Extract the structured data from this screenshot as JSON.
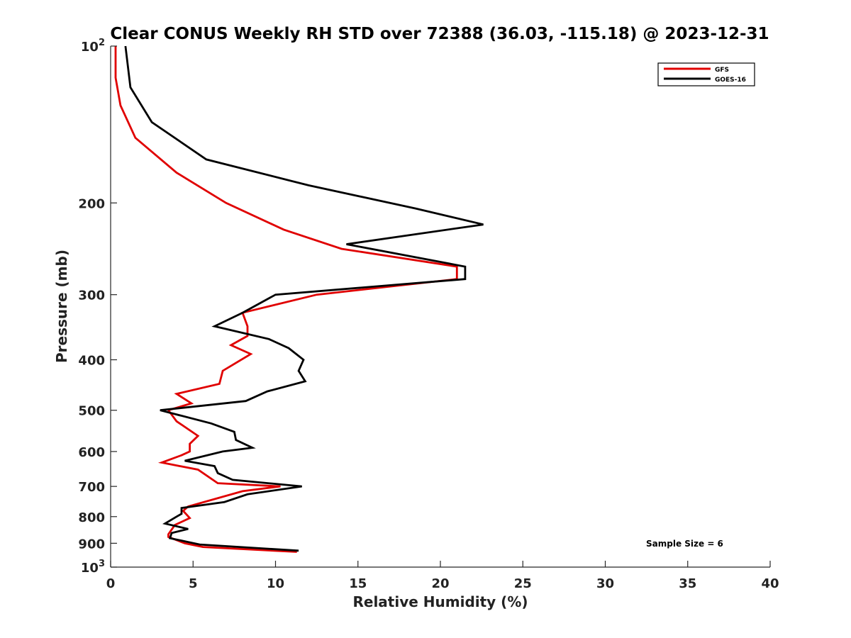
{
  "chart_data": {
    "type": "line",
    "title": "Clear CONUS Weekly RH STD over 72388 (36.03, -115.18) @ 2023-12-31",
    "xlabel": "Relative Humidity (%)",
    "ylabel": "Pressure (mb)",
    "xlim": [
      0,
      40
    ],
    "ylim": [
      100,
      1000
    ],
    "y_scale": "log",
    "y_reversed": true,
    "grid": false,
    "legend_position": "top-right",
    "x_ticks": [
      "0",
      "5",
      "10",
      "15",
      "20",
      "25",
      "30",
      "35",
      "40"
    ],
    "y_ticks": [
      {
        "value": 100,
        "base": "10",
        "exp": "2"
      },
      {
        "value": 200,
        "label": "200"
      },
      {
        "value": 300,
        "label": "300"
      },
      {
        "value": 400,
        "label": "400"
      },
      {
        "value": 500,
        "label": "500"
      },
      {
        "value": 600,
        "label": "600"
      },
      {
        "value": 700,
        "label": "700"
      },
      {
        "value": 800,
        "label": "800"
      },
      {
        "value": 900,
        "label": "900"
      },
      {
        "value": 1000,
        "base": "10",
        "exp": "3"
      }
    ],
    "annotation": "Sample Size = 6",
    "series": [
      {
        "name": "GFS",
        "color": "#e00000",
        "points": [
          [
            0.3,
            100
          ],
          [
            0.3,
            115
          ],
          [
            0.6,
            130
          ],
          [
            1.5,
            150
          ],
          [
            4.0,
            175
          ],
          [
            7.0,
            200
          ],
          [
            10.5,
            225
          ],
          [
            14.0,
            245
          ],
          [
            21.0,
            265
          ],
          [
            21.0,
            280
          ],
          [
            12.5,
            300
          ],
          [
            8.0,
            325
          ],
          [
            8.3,
            345
          ],
          [
            8.3,
            360
          ],
          [
            7.3,
            375
          ],
          [
            8.5,
            390
          ],
          [
            6.8,
            420
          ],
          [
            6.6,
            445
          ],
          [
            4.0,
            465
          ],
          [
            4.9,
            485
          ],
          [
            3.5,
            500
          ],
          [
            4.0,
            525
          ],
          [
            5.3,
            560
          ],
          [
            4.8,
            580
          ],
          [
            4.8,
            600
          ],
          [
            4.3,
            610
          ],
          [
            3.1,
            630
          ],
          [
            5.3,
            650
          ],
          [
            6.5,
            690
          ],
          [
            10.3,
            700
          ],
          [
            8.0,
            715
          ],
          [
            4.7,
            765
          ],
          [
            4.4,
            780
          ],
          [
            4.8,
            805
          ],
          [
            3.9,
            830
          ],
          [
            3.5,
            865
          ],
          [
            3.5,
            875
          ],
          [
            4.5,
            900
          ],
          [
            5.6,
            915
          ],
          [
            11.3,
            935
          ]
        ]
      },
      {
        "name": "GOES-16",
        "color": "#000000",
        "points": [
          [
            0.9,
            100
          ],
          [
            1.2,
            120
          ],
          [
            2.5,
            140
          ],
          [
            5.8,
            165
          ],
          [
            12.0,
            185
          ],
          [
            18.5,
            205
          ],
          [
            22.6,
            220
          ],
          [
            14.3,
            240
          ],
          [
            21.5,
            265
          ],
          [
            21.5,
            280
          ],
          [
            10.0,
            300
          ],
          [
            8.0,
            325
          ],
          [
            6.3,
            345
          ],
          [
            9.6,
            365
          ],
          [
            10.8,
            380
          ],
          [
            11.7,
            400
          ],
          [
            11.4,
            420
          ],
          [
            11.8,
            440
          ],
          [
            9.5,
            460
          ],
          [
            8.2,
            480
          ],
          [
            3.0,
            500
          ],
          [
            6.1,
            530
          ],
          [
            7.5,
            550
          ],
          [
            7.6,
            570
          ],
          [
            8.6,
            590
          ],
          [
            6.8,
            600
          ],
          [
            4.5,
            625
          ],
          [
            6.3,
            640
          ],
          [
            6.5,
            660
          ],
          [
            7.4,
            680
          ],
          [
            11.6,
            700
          ],
          [
            8.3,
            725
          ],
          [
            6.9,
            750
          ],
          [
            4.3,
            770
          ],
          [
            4.3,
            790
          ],
          [
            4.0,
            800
          ],
          [
            3.3,
            825
          ],
          [
            4.7,
            845
          ],
          [
            3.7,
            860
          ],
          [
            3.6,
            880
          ],
          [
            5.4,
            905
          ],
          [
            11.4,
            930
          ]
        ]
      }
    ]
  }
}
